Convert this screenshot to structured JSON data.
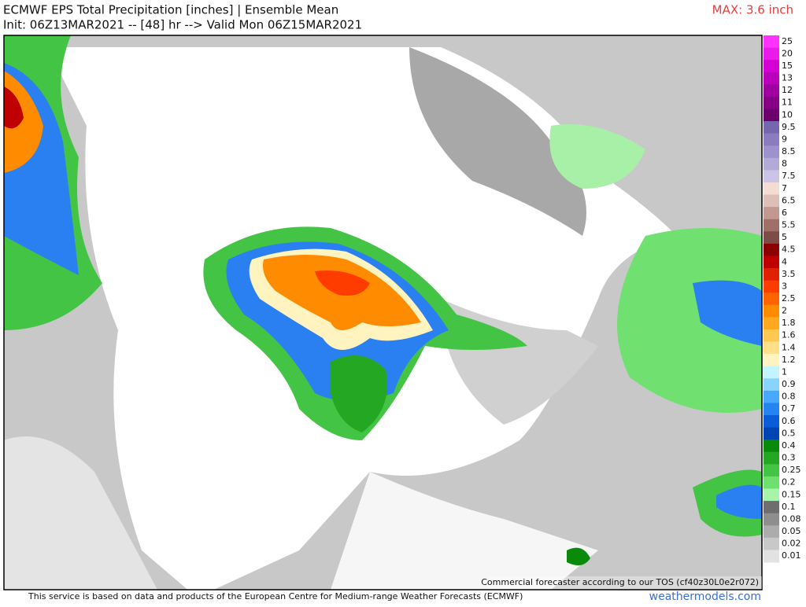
{
  "header": {
    "title": "ECMWF EPS Total Precipitation [inches] | Ensemble Mean",
    "subtitle": "Init: 06Z13MAR2021 -- [48] hr --> Valid Mon 06Z15MAR2021",
    "max_label": "MAX: 3.6 inch"
  },
  "colorbar": [
    {
      "label": "25",
      "color": "#ff33ff"
    },
    {
      "label": "20",
      "color": "#ea1aea"
    },
    {
      "label": "15",
      "color": "#d400d4"
    },
    {
      "label": "13",
      "color": "#bb00bb"
    },
    {
      "label": "12",
      "color": "#a000a0"
    },
    {
      "label": "11",
      "color": "#860086"
    },
    {
      "label": "10",
      "color": "#6c006c"
    },
    {
      "label": "9.5",
      "color": "#7566ae"
    },
    {
      "label": "9",
      "color": "#8a7cbe"
    },
    {
      "label": "8.5",
      "color": "#9e92cc"
    },
    {
      "label": "8",
      "color": "#b4aad8"
    },
    {
      "label": "7.5",
      "color": "#cbc4e6"
    },
    {
      "label": "7",
      "color": "#f2dcd4"
    },
    {
      "label": "6.5",
      "color": "#dcc0b8"
    },
    {
      "label": "6",
      "color": "#c29890"
    },
    {
      "label": "5.5",
      "color": "#a07068"
    },
    {
      "label": "5",
      "color": "#7e4c46"
    },
    {
      "label": "4.5",
      "color": "#8c0000"
    },
    {
      "label": "4",
      "color": "#be0000"
    },
    {
      "label": "3.5",
      "color": "#e02000"
    },
    {
      "label": "3",
      "color": "#ff3c00"
    },
    {
      "label": "2.5",
      "color": "#ff6400"
    },
    {
      "label": "2",
      "color": "#ff8c00"
    },
    {
      "label": "1.8",
      "color": "#ffa820"
    },
    {
      "label": "1.6",
      "color": "#ffc850"
    },
    {
      "label": "1.4",
      "color": "#ffe088"
    },
    {
      "label": "1.2",
      "color": "#fff4c0"
    },
    {
      "label": "1",
      "color": "#c4f4ff"
    },
    {
      "label": "0.9",
      "color": "#88d4ff"
    },
    {
      "label": "0.8",
      "color": "#48a8ff"
    },
    {
      "label": "0.7",
      "color": "#2484f0"
    },
    {
      "label": "0.6",
      "color": "#0a5cd8"
    },
    {
      "label": "0.5",
      "color": "#0044b4"
    },
    {
      "label": "0.4",
      "color": "#0a8a0a"
    },
    {
      "label": "0.3",
      "color": "#24a824"
    },
    {
      "label": "0.25",
      "color": "#44c444"
    },
    {
      "label": "0.2",
      "color": "#6ee06e"
    },
    {
      "label": "0.15",
      "color": "#a8f4a8"
    },
    {
      "label": "0.1",
      "color": "#6e6e6e"
    },
    {
      "label": "0.08",
      "color": "#8e8e8e"
    },
    {
      "label": "0.05",
      "color": "#acacac"
    },
    {
      "label": "0.02",
      "color": "#c8c8c8"
    },
    {
      "label": "0.01",
      "color": "#e2e2e2"
    }
  ],
  "tos_note": "Commercial forecaster according to our TOS (cf40z30L0e2r072)",
  "footer": {
    "disclaimer": "This service is based on data and products of the European Centre for Medium-range Weather Forecasts (ECMWF)",
    "site": "weathermodels.com"
  }
}
